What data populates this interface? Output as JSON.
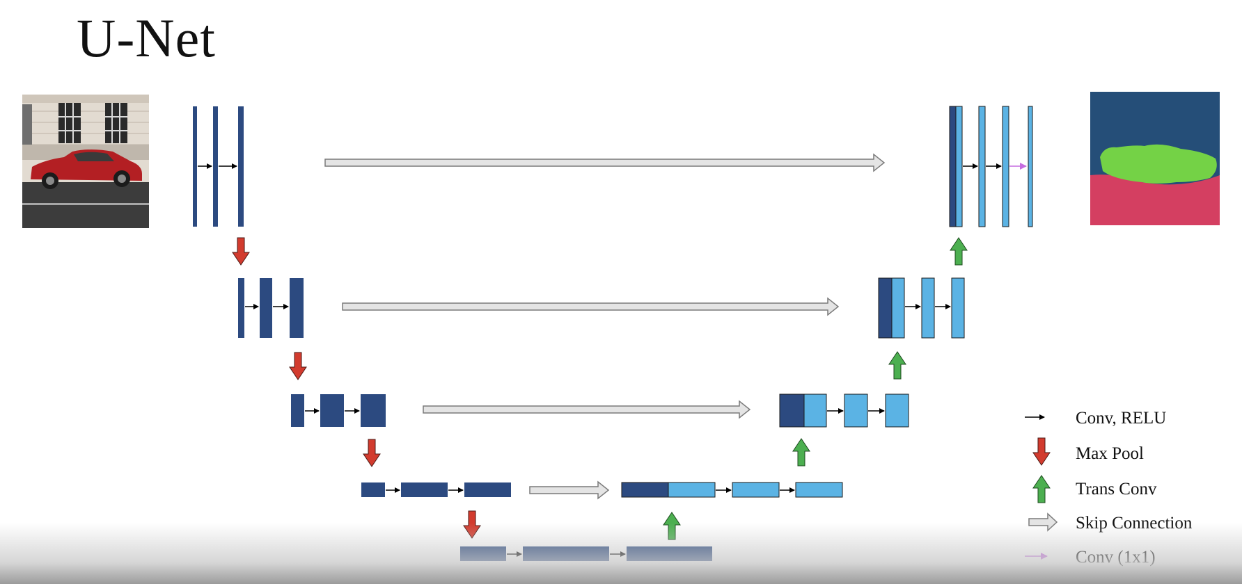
{
  "title": "U-Net",
  "colors": {
    "encoder": "#2c4a80",
    "decoder": "#5bb3e4",
    "conv_arrow": "#000000",
    "max_pool": "#d23b2e",
    "trans_conv": "#4caf50",
    "skip_connection": "#e4e4e4",
    "conv_1x1": "#c66de0",
    "mask_background": "#254e78",
    "mask_car": "#74d246",
    "mask_road": "#d43f61"
  },
  "legend": [
    {
      "label": "Conv, RELU",
      "icon": "conv-arrow"
    },
    {
      "label": "Max Pool",
      "icon": "max-pool-arrow"
    },
    {
      "label": "Trans Conv",
      "icon": "trans-conv-arrow"
    },
    {
      "label": "Skip Connection",
      "icon": "skip-connection-arrow"
    },
    {
      "label": "Conv (1x1)",
      "icon": "conv-1x1-arrow"
    }
  ],
  "images": {
    "input": "car-photo",
    "output": "segmentation-mask"
  }
}
